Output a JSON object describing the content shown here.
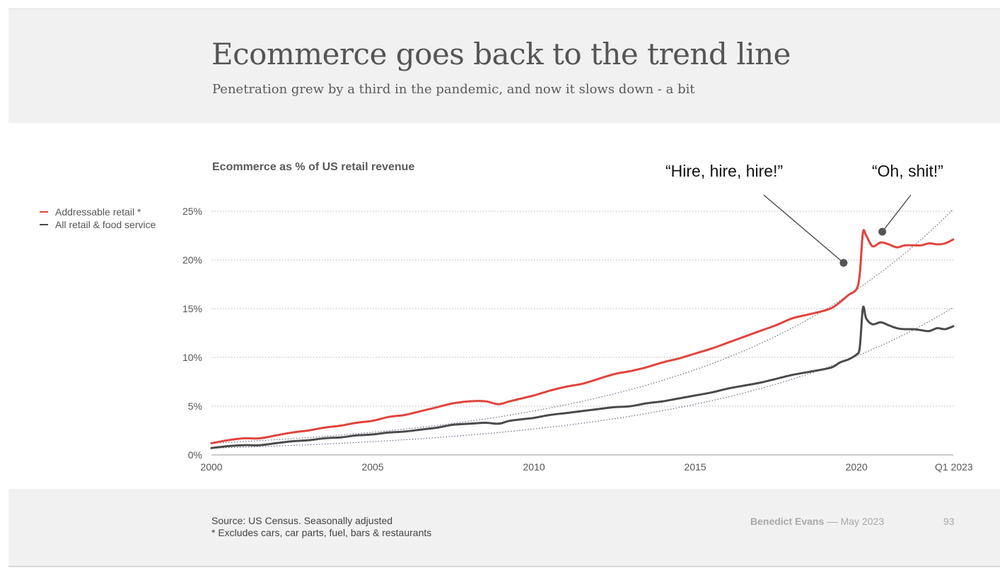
{
  "slide": {
    "title": "Ecommerce goes back to the trend line",
    "subtitle": "Penetration grew by a third in the pandemic, and now it slows down - a bit",
    "chart_label": "Ecommerce as % of US retail revenue",
    "callouts": [
      "“Hire, hire, hire!”",
      "“Oh, shit!”"
    ],
    "source_line1": "Source: US Census. Seasonally adjusted",
    "source_line2": "* Excludes cars, car parts, fuel, bars & restaurants",
    "brand": "Benedict Evans",
    "brand_sep": " –– ",
    "date": "May 2023",
    "page_number": "93"
  },
  "chart_data": {
    "type": "line",
    "title": "Ecommerce as % of US retail revenue",
    "xlabel": "",
    "ylabel": "",
    "x_tick_labels": [
      "2000",
      "2005",
      "2010",
      "2015",
      "2020",
      "Q1 2023"
    ],
    "x_tick_values": [
      2000,
      2005,
      2010,
      2015,
      2020,
      2023
    ],
    "y_tick_labels": [
      "0%",
      "5%",
      "10%",
      "15%",
      "20%",
      "25%"
    ],
    "y_tick_values": [
      0,
      5,
      10,
      15,
      20,
      25
    ],
    "xlim": [
      2000,
      2023
    ],
    "ylim": [
      0,
      25
    ],
    "grid": "horizontal dotted",
    "legend_position": "left",
    "series": [
      {
        "name": "Addressable retail *",
        "color": "#e0443c",
        "x": [
          2000,
          2000.5,
          2001,
          2001.5,
          2002,
          2002.5,
          2003,
          2003.5,
          2004,
          2004.5,
          2005,
          2005.5,
          2006,
          2006.5,
          2007,
          2007.5,
          2008,
          2008.5,
          2008.9,
          2009.25,
          2009.75,
          2010,
          2010.5,
          2011,
          2011.5,
          2012,
          2012.5,
          2013,
          2013.5,
          2014,
          2014.5,
          2015,
          2015.5,
          2016,
          2016.5,
          2017,
          2017.5,
          2018,
          2018.5,
          2019,
          2019.25,
          2019.5,
          2019.75,
          2020,
          2020.1,
          2020.2,
          2020.3,
          2020.5,
          2020.75,
          2021,
          2021.25,
          2021.5,
          2021.75,
          2022,
          2022.25,
          2022.5,
          2022.75,
          2023
        ],
        "values": [
          1.2,
          1.5,
          1.7,
          1.7,
          2.0,
          2.3,
          2.5,
          2.8,
          3.0,
          3.3,
          3.5,
          3.9,
          4.1,
          4.5,
          4.9,
          5.3,
          5.5,
          5.5,
          5.2,
          5.5,
          5.9,
          6.1,
          6.6,
          7.0,
          7.3,
          7.8,
          8.3,
          8.6,
          9.0,
          9.5,
          9.9,
          10.4,
          10.9,
          11.5,
          12.1,
          12.7,
          13.3,
          14.0,
          14.4,
          14.8,
          15.1,
          15.7,
          16.4,
          17.0,
          18.5,
          22.8,
          22.5,
          21.4,
          21.8,
          21.6,
          21.3,
          21.5,
          21.5,
          21.5,
          21.7,
          21.6,
          21.7,
          22.1
        ]
      },
      {
        "name": "All retail & food service",
        "color": "#4a4a4a",
        "x": [
          2000,
          2000.5,
          2001,
          2001.5,
          2002,
          2002.5,
          2003,
          2003.5,
          2004,
          2004.5,
          2005,
          2005.5,
          2006,
          2006.5,
          2007,
          2007.5,
          2008,
          2008.5,
          2008.9,
          2009.25,
          2009.75,
          2010,
          2010.5,
          2011,
          2011.5,
          2012,
          2012.5,
          2013,
          2013.5,
          2014,
          2014.5,
          2015,
          2015.5,
          2016,
          2016.5,
          2017,
          2017.5,
          2018,
          2018.5,
          2019,
          2019.25,
          2019.5,
          2019.75,
          2020,
          2020.1,
          2020.2,
          2020.3,
          2020.5,
          2020.75,
          2021,
          2021.25,
          2021.5,
          2021.75,
          2022,
          2022.25,
          2022.5,
          2022.75,
          2023
        ],
        "values": [
          0.7,
          0.9,
          1.0,
          1.0,
          1.2,
          1.4,
          1.5,
          1.7,
          1.8,
          2.0,
          2.1,
          2.3,
          2.4,
          2.6,
          2.8,
          3.1,
          3.2,
          3.3,
          3.2,
          3.5,
          3.7,
          3.8,
          4.1,
          4.3,
          4.5,
          4.7,
          4.9,
          5.0,
          5.3,
          5.5,
          5.8,
          6.1,
          6.4,
          6.8,
          7.1,
          7.4,
          7.8,
          8.2,
          8.5,
          8.8,
          9.0,
          9.5,
          9.8,
          10.3,
          11.0,
          15.1,
          14.0,
          13.4,
          13.6,
          13.3,
          13.0,
          12.9,
          12.9,
          12.8,
          12.7,
          13.0,
          12.9,
          13.2
        ]
      }
    ],
    "trend_lines": [
      {
        "series": "Addressable retail *",
        "style": "dotted",
        "color": "#6b6b8a"
      },
      {
        "series": "All retail & food service",
        "style": "dotted",
        "color": "#6b6b8a"
      }
    ],
    "annotations": [
      {
        "text": "“Hire, hire, hire!”",
        "x": 2019.6,
        "y": 19.7
      },
      {
        "text": "“Oh, shit!”",
        "x": 2020.8,
        "y": 22.9
      }
    ]
  }
}
